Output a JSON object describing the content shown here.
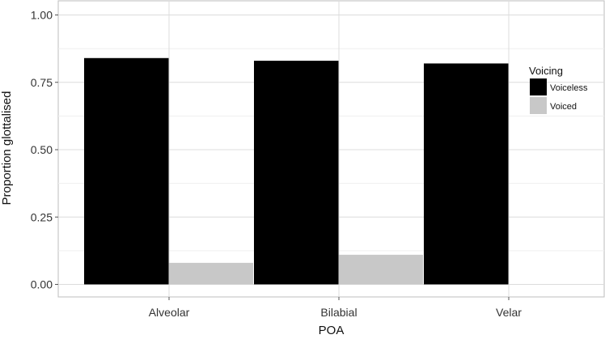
{
  "chart_data": {
    "type": "bar",
    "categories": [
      "Alveolar",
      "Bilabial",
      "Velar"
    ],
    "series": [
      {
        "name": "Voiceless",
        "values": [
          0.84,
          0.83,
          0.82
        ],
        "color": "#000000"
      },
      {
        "name": "Voiced",
        "values": [
          0.08,
          0.11,
          0.0
        ],
        "color": "#c8c8c8"
      }
    ],
    "xlabel": "POA",
    "ylabel": "Proportion glottalised",
    "ylim": [
      -0.05,
      1.05
    ],
    "yticks": [
      0.0,
      0.25,
      0.5,
      0.75,
      1.0
    ],
    "ytick_labels": [
      "0.00",
      "0.25",
      "0.50",
      "0.75",
      "1.00"
    ],
    "grid": true,
    "legend": {
      "title": "Voicing",
      "placement": "right"
    }
  }
}
